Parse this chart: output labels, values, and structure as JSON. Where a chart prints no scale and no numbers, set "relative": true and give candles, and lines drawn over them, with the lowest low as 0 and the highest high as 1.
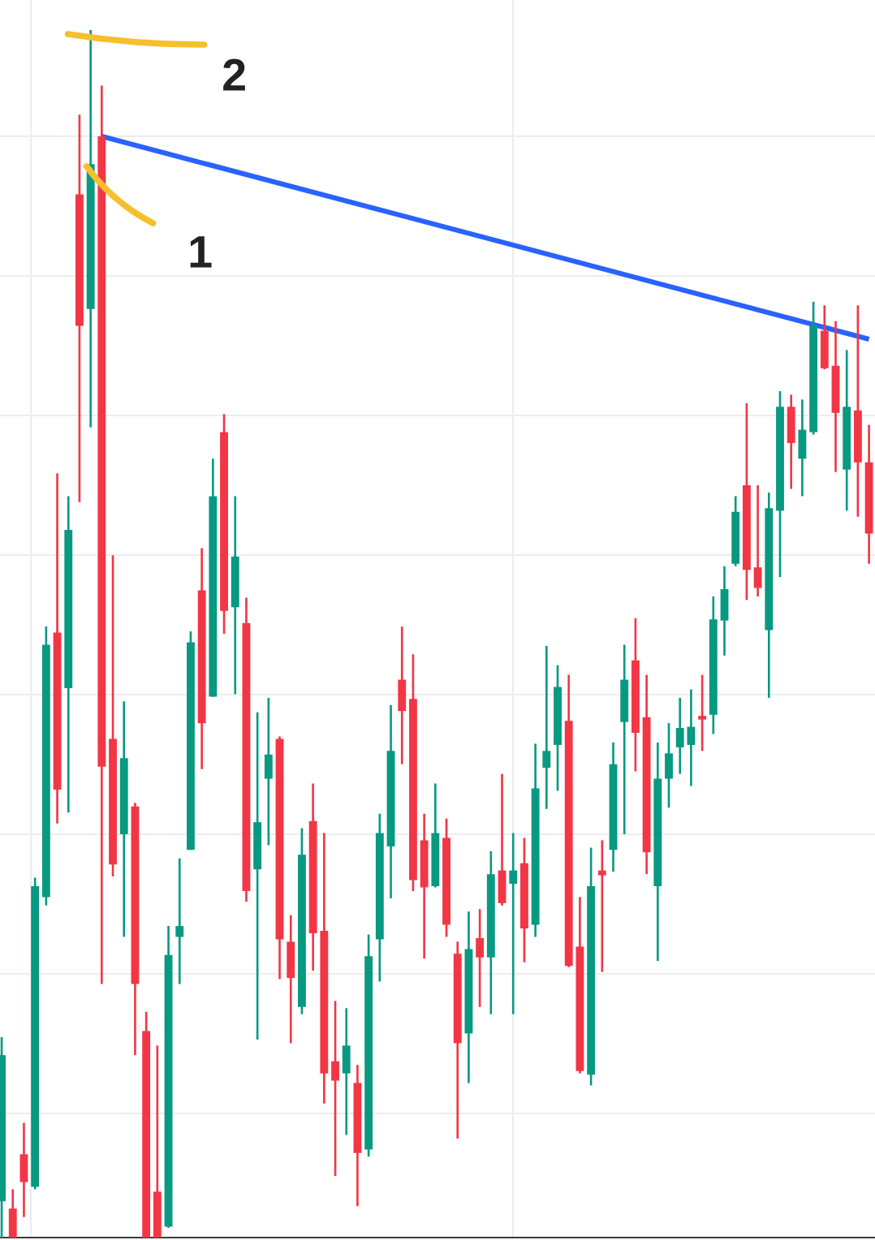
{
  "chart_data": {
    "type": "candlestick",
    "relative": true,
    "grid": true,
    "categories": [
      null,
      null,
      null,
      null,
      null,
      null,
      null,
      null,
      null,
      null,
      null,
      null,
      null,
      null,
      null,
      null,
      null,
      null,
      null,
      null,
      null,
      null,
      null,
      null,
      null,
      null,
      null,
      null,
      null,
      null,
      null,
      null,
      null,
      null,
      null,
      null,
      null,
      null,
      null,
      null,
      null,
      null,
      null,
      null,
      null,
      null,
      null,
      null,
      null,
      null,
      null,
      null,
      null,
      null,
      null,
      null,
      null,
      null,
      null,
      null,
      null,
      null,
      null,
      null,
      null,
      null,
      null,
      null,
      null,
      null,
      null,
      null,
      null,
      null,
      null,
      null,
      null,
      null,
      null
    ],
    "ohlc": [
      [
        0.03,
        0.166,
        0,
        0.151
      ],
      [
        0.024,
        0.04,
        0,
        0
      ],
      [
        0.069,
        0.095,
        0.017,
        0.046
      ],
      [
        0.042,
        0.298,
        0.04,
        0.291
      ],
      [
        0.282,
        0.506,
        0.275,
        0.491
      ],
      [
        0.501,
        0.633,
        0.343,
        0.371
      ],
      [
        0.455,
        0.614,
        0.352,
        0.586
      ],
      [
        0.864,
        0.93,
        0.609,
        0.755
      ],
      [
        0.769,
        1,
        0.671,
        0.889
      ],
      [
        0.912,
        0.954,
        0.21,
        0.39
      ],
      [
        0.413,
        0.565,
        0.299,
        0.309
      ],
      [
        0.334,
        0.444,
        0.249,
        0.397
      ],
      [
        0.357,
        0.36,
        0.151,
        0.21
      ],
      [
        0.171,
        0.187,
        0,
        0
      ],
      [
        0.038,
        0.159,
        0,
        0
      ],
      [
        0.009,
        0.258,
        0.008,
        0.234
      ],
      [
        0.249,
        0.314,
        0.21,
        0.258
      ],
      [
        0.321,
        0.502,
        0.321,
        0.493
      ],
      [
        0.536,
        0.571,
        0.388,
        0.426
      ],
      [
        0.448,
        0.645,
        0.448,
        0.614
      ],
      [
        0.667,
        0.682,
        0.5,
        0.519
      ],
      [
        0.522,
        0.614,
        0.45,
        0.564
      ],
      [
        0.509,
        0.53,
        0.278,
        0.287
      ],
      [
        0.305,
        0.435,
        0.164,
        0.344
      ],
      [
        0.38,
        0.447,
        0.325,
        0.4
      ],
      [
        0.413,
        0.415,
        0.214,
        0.247
      ],
      [
        0.245,
        0.267,
        0.161,
        0.215
      ],
      [
        0.191,
        0.339,
        0.185,
        0.317
      ],
      [
        0.345,
        0.376,
        0.221,
        0.252
      ],
      [
        0.254,
        0.335,
        0.111,
        0.136
      ],
      [
        0.146,
        0.196,
        0.051,
        0.13
      ],
      [
        0.136,
        0.19,
        0.085,
        0.159
      ],
      [
        0.128,
        0.143,
        0.026,
        0.07
      ],
      [
        0.073,
        0.251,
        0.067,
        0.233
      ],
      [
        0.247,
        0.351,
        0.212,
        0.335
      ],
      [
        0.324,
        0.441,
        0.281,
        0.403
      ],
      [
        0.462,
        0.506,
        0.392,
        0.436
      ],
      [
        0.446,
        0.483,
        0.287,
        0.296
      ],
      [
        0.329,
        0.351,
        0.231,
        0.29
      ],
      [
        0.291,
        0.376,
        0.29,
        0.335
      ],
      [
        0.331,
        0.347,
        0.249,
        0.259
      ],
      [
        0.235,
        0.245,
        0.082,
        0.161
      ],
      [
        0.169,
        0.27,
        0.128,
        0.239
      ],
      [
        0.248,
        0.272,
        0.191,
        0.232
      ],
      [
        0.232,
        0.32,
        0.185,
        0.301
      ],
      [
        0.304,
        0.384,
        0.275,
        0.277
      ],
      [
        0.293,
        0.335,
        0.185,
        0.304
      ],
      [
        0.31,
        0.331,
        0.228,
        0.256
      ],
      [
        0.259,
        0.409,
        0.249,
        0.372
      ],
      [
        0.389,
        0.49,
        0.355,
        0.403
      ],
      [
        0.408,
        0.474,
        0.37,
        0.456
      ],
      [
        0.428,
        0.466,
        0.224,
        0.225
      ],
      [
        0.241,
        0.282,
        0.136,
        0.138
      ],
      [
        0.135,
        0.323,
        0.126,
        0.291
      ],
      [
        0.304,
        0.329,
        0.22,
        0.3
      ],
      [
        0.321,
        0.41,
        0.303,
        0.392
      ],
      [
        0.427,
        0.491,
        0.334,
        0.462
      ],
      [
        0.478,
        0.513,
        0.386,
        0.418
      ],
      [
        0.431,
        0.466,
        0.301,
        0.319
      ],
      [
        0.291,
        0.41,
        0.229,
        0.38
      ],
      [
        0.38,
        0.426,
        0.356,
        0.401
      ],
      [
        0.406,
        0.447,
        0.384,
        0.422
      ],
      [
        0.408,
        0.454,
        0.374,
        0.423
      ],
      [
        0.432,
        0.466,
        0.403,
        0.429
      ],
      [
        0.433,
        0.531,
        0.417,
        0.512
      ],
      [
        0.511,
        0.556,
        0.482,
        0.537
      ],
      [
        0.558,
        0.614,
        0.556,
        0.601
      ],
      [
        0.623,
        0.691,
        0.528,
        0.553
      ],
      [
        0.555,
        0.623,
        0.531,
        0.538
      ],
      [
        0.503,
        0.617,
        0.447,
        0.604
      ],
      [
        0.602,
        0.701,
        0.547,
        0.688
      ],
      [
        0.688,
        0.698,
        0.62,
        0.658
      ],
      [
        0.645,
        0.694,
        0.614,
        0.669
      ],
      [
        0.667,
        0.775,
        0.665,
        0.755
      ],
      [
        0.751,
        0.772,
        0.719,
        0.72
      ],
      [
        0.722,
        0.759,
        0.634,
        0.683
      ],
      [
        0.636,
        0.735,
        0.602,
        0.688
      ],
      [
        0.685,
        0.772,
        0.597,
        0.642
      ],
      [
        0.642,
        0.673,
        0.558,
        0.583
      ]
    ],
    "colors": [
      "#089981",
      "#f23645",
      "#f23645",
      "#089981",
      "#089981",
      "#f23645",
      "#089981",
      "#f23645",
      "#089981",
      "#f23645",
      "#f23645",
      "#089981",
      "#f23645",
      "#f23645",
      "#f23645",
      "#089981",
      "#089981",
      "#089981",
      "#f23645",
      "#089981",
      "#f23645",
      "#089981",
      "#f23645",
      "#089981",
      "#089981",
      "#f23645",
      "#f23645",
      "#089981",
      "#f23645",
      "#f23645",
      "#f23645",
      "#089981",
      "#f23645",
      "#089981",
      "#089981",
      "#089981",
      "#f23645",
      "#f23645",
      "#f23645",
      "#089981",
      "#f23645",
      "#f23645",
      "#089981",
      "#f23645",
      "#089981",
      "#f23645",
      "#089981",
      "#f23645",
      "#089981",
      "#089981",
      "#089981",
      "#f23645",
      "#f23645",
      "#089981",
      "#f23645",
      "#089981",
      "#089981",
      "#f23645",
      "#f23645",
      "#089981",
      "#089981",
      "#089981",
      "#089981",
      "#f23645",
      "#089981",
      "#089981",
      "#089981",
      "#f23645",
      "#f23645",
      "#089981",
      "#089981",
      "#f23645",
      "#089981",
      "#089981",
      "#f23645",
      "#f23645",
      "#089981",
      "#f23645",
      "#f23645"
    ],
    "series": [
      {
        "type": "line",
        "color": "#2962ff",
        "values": [
          null,
          null,
          null,
          null,
          null,
          null,
          null,
          null,
          null,
          0.912,
          null,
          null,
          null,
          null,
          null,
          null,
          null,
          null,
          null,
          null,
          null,
          null,
          null,
          null,
          null,
          null,
          null,
          null,
          null,
          null,
          null,
          null,
          null,
          null,
          null,
          null,
          null,
          null,
          null,
          null,
          null,
          null,
          null,
          null,
          null,
          null,
          null,
          null,
          null,
          null,
          null,
          null,
          null,
          null,
          null,
          null,
          null,
          null,
          null,
          null,
          null,
          null,
          null,
          null,
          null,
          null,
          null,
          null,
          null,
          null,
          null,
          null,
          null,
          null,
          null,
          null,
          null,
          null,
          0.744
        ]
      }
    ],
    "annotations": [
      "2",
      "1"
    ]
  }
}
